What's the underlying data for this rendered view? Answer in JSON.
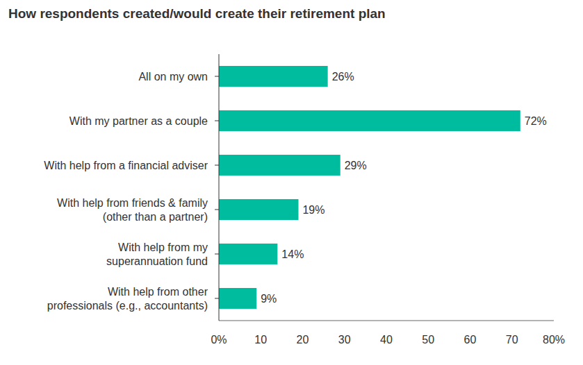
{
  "chart_data": {
    "type": "bar",
    "title": "How respondents created/would create their retirement plan",
    "orientation": "horizontal",
    "categories": [
      "All on my own",
      "With my partner as a couple",
      "With help from a financial adviser",
      "With help from friends & family\n(other than a partner)",
      "With help from my\nsuperannuation fund",
      "With help from other\nprofessionals (e.g., accountants)"
    ],
    "values": [
      26,
      72,
      29,
      19,
      14,
      9
    ],
    "value_labels": [
      "26%",
      "72%",
      "29%",
      "19%",
      "14%",
      "9%"
    ],
    "data_labels": true,
    "color": "#00BC9F",
    "xlim": [
      0,
      80
    ],
    "xticks": [
      {
        "value": 0,
        "label": "0%"
      },
      10,
      20,
      30,
      40,
      50,
      60,
      70,
      {
        "value": 80,
        "label": "80%"
      }
    ],
    "grid": false
  }
}
